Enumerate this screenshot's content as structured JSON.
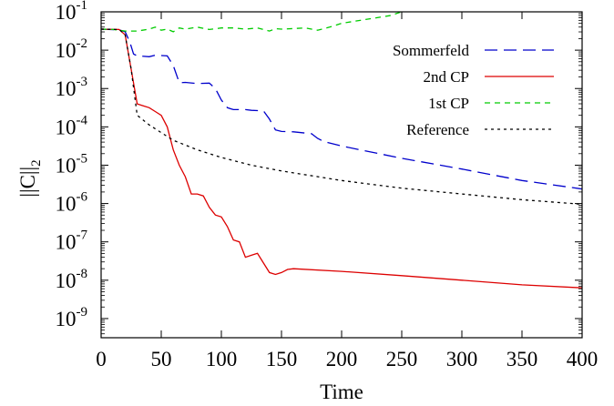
{
  "chart_data": {
    "type": "line",
    "title": "",
    "xlabel": "Time",
    "ylabel": "||C||",
    "ylabel_subscript": "2",
    "xlim": [
      0,
      400
    ],
    "ylim_exponent": [
      -9.5,
      -1
    ],
    "yscale": "log",
    "grid": false,
    "legend_position": "top-right",
    "x_ticks": [
      0,
      50,
      100,
      150,
      200,
      250,
      300,
      350,
      400
    ],
    "x_tick_labels": [
      "0",
      "50",
      "100",
      "150",
      "200",
      "250",
      "300",
      "350",
      "400"
    ],
    "y_ticks": [
      {
        "base": "10",
        "exp": "-1",
        "value": -1
      },
      {
        "base": "10",
        "exp": "-2",
        "value": -2
      },
      {
        "base": "10",
        "exp": "-3",
        "value": -3
      },
      {
        "base": "10",
        "exp": "-4",
        "value": -4
      },
      {
        "base": "10",
        "exp": "-5",
        "value": -5
      },
      {
        "base": "10",
        "exp": "-6",
        "value": -6
      },
      {
        "base": "10",
        "exp": "-7",
        "value": -7
      },
      {
        "base": "10",
        "exp": "-8",
        "value": -8
      },
      {
        "base": "10",
        "exp": "-9",
        "value": -9
      }
    ],
    "series": [
      {
        "name": "Sommerfeld",
        "color": "#0000cc",
        "dash": "14,7",
        "points": [
          [
            0,
            -1.45
          ],
          [
            15,
            -1.47
          ],
          [
            20,
            -1.52
          ],
          [
            24,
            -1.8
          ],
          [
            27,
            -2.1
          ],
          [
            30,
            -2.15
          ],
          [
            40,
            -2.17
          ],
          [
            45,
            -2.13
          ],
          [
            55,
            -2.15
          ],
          [
            60,
            -2.4
          ],
          [
            65,
            -2.85
          ],
          [
            70,
            -2.84
          ],
          [
            80,
            -2.87
          ],
          [
            90,
            -2.86
          ],
          [
            95,
            -3.0
          ],
          [
            100,
            -3.3
          ],
          [
            105,
            -3.5
          ],
          [
            110,
            -3.55
          ],
          [
            120,
            -3.55
          ],
          [
            125,
            -3.57
          ],
          [
            135,
            -3.58
          ],
          [
            140,
            -3.8
          ],
          [
            145,
            -4.08
          ],
          [
            150,
            -4.12
          ],
          [
            160,
            -4.13
          ],
          [
            175,
            -4.18
          ],
          [
            180,
            -4.3
          ],
          [
            185,
            -4.38
          ],
          [
            200,
            -4.5
          ],
          [
            250,
            -4.82
          ],
          [
            300,
            -5.1
          ],
          [
            350,
            -5.4
          ],
          [
            400,
            -5.62
          ]
        ]
      },
      {
        "name": "2nd CP",
        "color": "#dd0000",
        "dash": "",
        "points": [
          [
            0,
            -1.45
          ],
          [
            15,
            -1.46
          ],
          [
            20,
            -1.6
          ],
          [
            25,
            -2.5
          ],
          [
            30,
            -3.4
          ],
          [
            35,
            -3.45
          ],
          [
            40,
            -3.5
          ],
          [
            45,
            -3.6
          ],
          [
            50,
            -3.7
          ],
          [
            55,
            -4.0
          ],
          [
            60,
            -4.6
          ],
          [
            65,
            -5.0
          ],
          [
            70,
            -5.3
          ],
          [
            75,
            -5.75
          ],
          [
            80,
            -5.75
          ],
          [
            85,
            -5.8
          ],
          [
            90,
            -6.1
          ],
          [
            95,
            -6.3
          ],
          [
            100,
            -6.35
          ],
          [
            105,
            -6.6
          ],
          [
            110,
            -6.95
          ],
          [
            115,
            -7.0
          ],
          [
            120,
            -7.4
          ],
          [
            125,
            -7.35
          ],
          [
            130,
            -7.3
          ],
          [
            135,
            -7.55
          ],
          [
            140,
            -7.8
          ],
          [
            145,
            -7.85
          ],
          [
            150,
            -7.8
          ],
          [
            155,
            -7.72
          ],
          [
            160,
            -7.7
          ],
          [
            200,
            -7.77
          ],
          [
            250,
            -7.88
          ],
          [
            300,
            -8.0
          ],
          [
            350,
            -8.12
          ],
          [
            400,
            -8.2
          ]
        ]
      },
      {
        "name": "1st CP",
        "color": "#00cc00",
        "dash": "6,5",
        "points": [
          [
            0,
            -1.45
          ],
          [
            10,
            -1.46
          ],
          [
            20,
            -1.5
          ],
          [
            30,
            -1.5
          ],
          [
            40,
            -1.45
          ],
          [
            45,
            -1.4
          ],
          [
            50,
            -1.48
          ],
          [
            55,
            -1.45
          ],
          [
            60,
            -1.52
          ],
          [
            65,
            -1.42
          ],
          [
            70,
            -1.45
          ],
          [
            80,
            -1.4
          ],
          [
            90,
            -1.46
          ],
          [
            100,
            -1.42
          ],
          [
            110,
            -1.42
          ],
          [
            120,
            -1.45
          ],
          [
            130,
            -1.42
          ],
          [
            140,
            -1.5
          ],
          [
            145,
            -1.44
          ],
          [
            150,
            -1.45
          ],
          [
            170,
            -1.42
          ],
          [
            180,
            -1.48
          ],
          [
            190,
            -1.4
          ],
          [
            200,
            -1.3
          ],
          [
            220,
            -1.2
          ],
          [
            240,
            -1.1
          ],
          [
            260,
            -0.9
          ],
          [
            270,
            -0.8
          ]
        ]
      },
      {
        "name": "Reference",
        "color": "#000000",
        "dash": "3,4",
        "points": [
          [
            0,
            -1.45
          ],
          [
            15,
            -1.46
          ],
          [
            20,
            -1.6
          ],
          [
            25,
            -2.5
          ],
          [
            30,
            -3.7
          ],
          [
            40,
            -3.95
          ],
          [
            50,
            -4.15
          ],
          [
            60,
            -4.35
          ],
          [
            80,
            -4.6
          ],
          [
            100,
            -4.8
          ],
          [
            125,
            -5.0
          ],
          [
            150,
            -5.15
          ],
          [
            200,
            -5.4
          ],
          [
            250,
            -5.6
          ],
          [
            300,
            -5.75
          ],
          [
            350,
            -5.9
          ],
          [
            400,
            -6.02
          ]
        ]
      }
    ]
  }
}
